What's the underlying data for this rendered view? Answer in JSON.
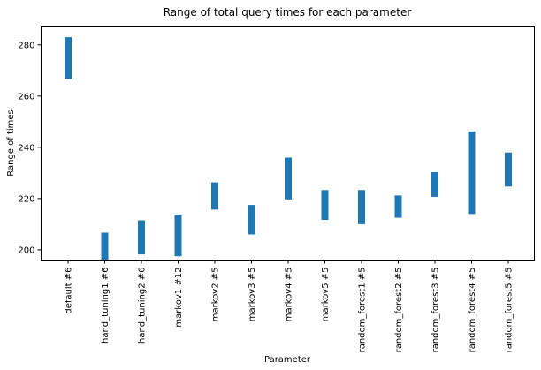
{
  "chart_data": {
    "type": "bar",
    "title": "Range of total query times for each parameter",
    "xlabel": "Parameter",
    "ylabel": "Range of times",
    "ylim": [
      196,
      287
    ],
    "yticks": [
      200,
      220,
      240,
      260,
      280
    ],
    "grid": false,
    "legend": "none",
    "bar_color": "#1f77b4",
    "categories": [
      "default #6",
      "hand_tuning1 #6",
      "hand_tuning2 #6",
      "markov1 #12",
      "markov2 #5",
      "markov3 #5",
      "markov4 #5",
      "markov5 #5",
      "random_forest1 #5",
      "random_forest2 #5",
      "random_forest3 #5",
      "random_forest4 #5",
      "random_forest5 #5"
    ],
    "series": [
      {
        "low": [
          266.7,
          196,
          198.2,
          197.5,
          215.7,
          206.0,
          219.7,
          211.7,
          210.0,
          212.5,
          220.7,
          214.0,
          224.7
        ],
        "high": [
          283.0,
          206.7,
          211.5,
          213.8,
          226.3,
          217.5,
          236.0,
          223.3,
          223.3,
          221.2,
          230.3,
          246.2,
          238.0
        ]
      }
    ]
  }
}
